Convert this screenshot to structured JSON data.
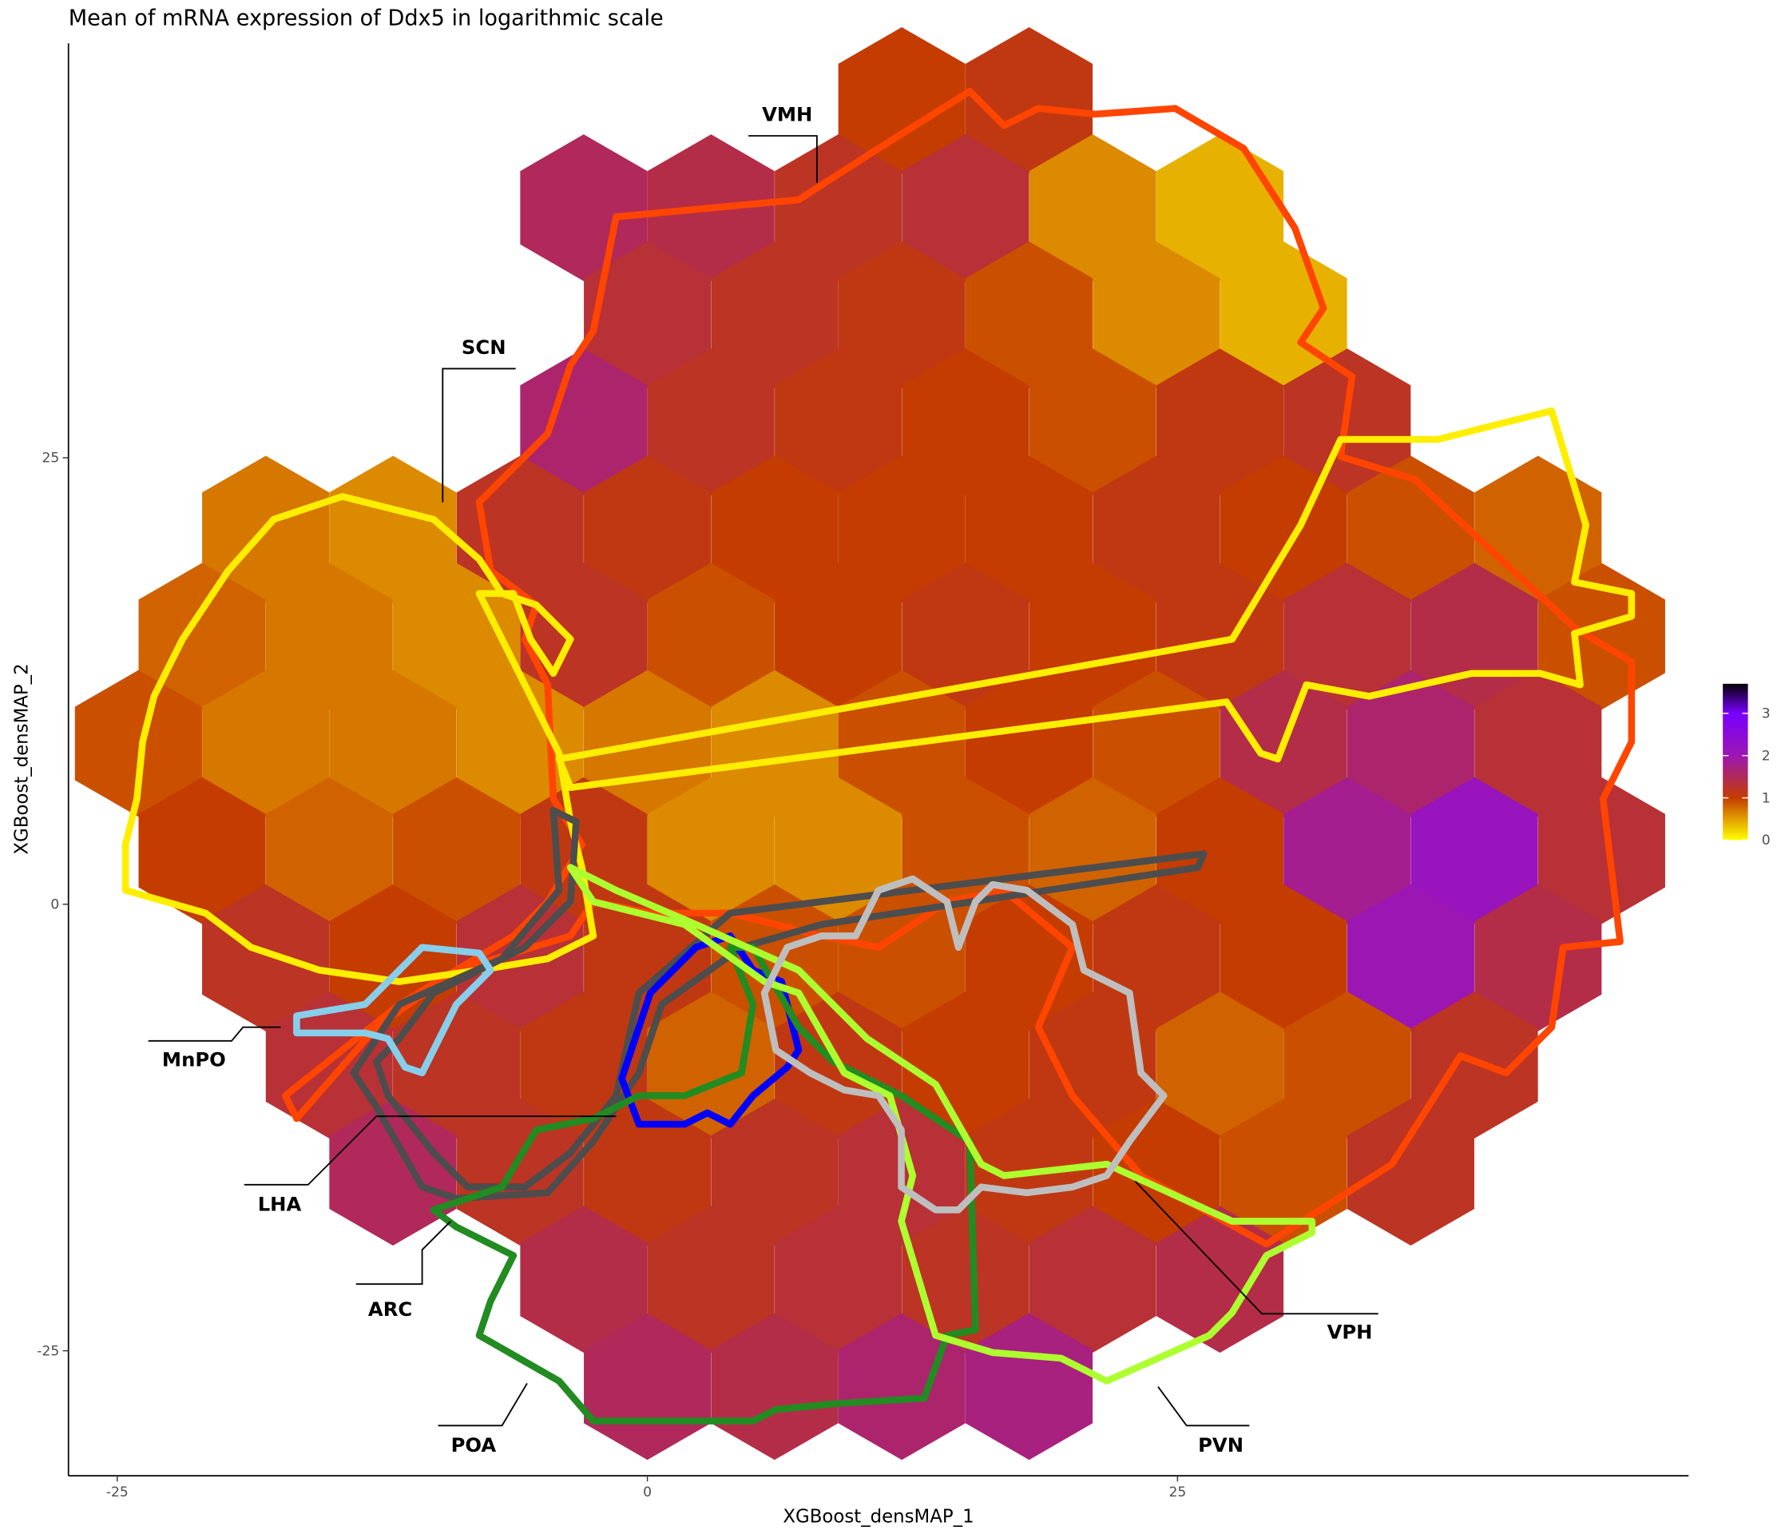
{
  "chart_data": {
    "type": "hexbin",
    "title": "Mean of mRNA expression of Ddx5 in logarithmic scale",
    "x_label": "XGBoost_densMAP_1",
    "y_label": "XGBoost_densMAP_2",
    "xlim": [
      -27.3,
      49.1
    ],
    "ylim": [
      -32,
      48.2
    ],
    "xticks": [
      -25,
      0,
      25
    ],
    "yticks": [
      -25,
      0,
      25
    ],
    "cells": {
      "x": [
        12,
        18,
        -3,
        3,
        9,
        15,
        21,
        27,
        0,
        6,
        12,
        18,
        24,
        30,
        -3,
        3,
        9,
        15,
        21,
        27,
        33,
        -18,
        -12,
        -6,
        0,
        6,
        12,
        18,
        24,
        30,
        36,
        42,
        -21,
        -15,
        -9,
        -3,
        3,
        9,
        15,
        21,
        27,
        33,
        39,
        45,
        -24,
        -18,
        -12,
        -6,
        0,
        6,
        12,
        18,
        24,
        30,
        36,
        42,
        -21,
        -15,
        -9,
        -3,
        3,
        9,
        15,
        21,
        27,
        33,
        39,
        45,
        -18,
        -12,
        -6,
        0,
        6,
        12,
        18,
        24,
        30,
        36,
        42,
        -15,
        -9,
        -3,
        3,
        9,
        15,
        21,
        27,
        33,
        39,
        -12,
        -6,
        0,
        6,
        12,
        18,
        24,
        30,
        36,
        -3,
        3,
        9,
        15,
        21,
        27,
        0,
        6,
        12,
        18
      ],
      "y": [
        45,
        45,
        39,
        39,
        39,
        39,
        39,
        39,
        33,
        33,
        33,
        33,
        33,
        33,
        27,
        27,
        27,
        27,
        27,
        27,
        27,
        21,
        21,
        21,
        21,
        21,
        21,
        21,
        21,
        21,
        21,
        21,
        15,
        15,
        15,
        15,
        15,
        15,
        15,
        15,
        15,
        15,
        15,
        15,
        9,
        9,
        9,
        9,
        9,
        9,
        9,
        9,
        9,
        9,
        9,
        9,
        3,
        3,
        3,
        3,
        3,
        3,
        3,
        3,
        3,
        3,
        3,
        3,
        -3,
        -3,
        -3,
        -3,
        -3,
        -3,
        -3,
        -3,
        -3,
        -3,
        -3,
        -9,
        -9,
        -9,
        -9,
        -9,
        -9,
        -9,
        -9,
        -9,
        -9,
        -15,
        -15,
        -15,
        -15,
        -15,
        -15,
        -15,
        -15,
        -15,
        -21,
        -21,
        -21,
        -21,
        -21,
        -21,
        -27,
        -27,
        -27,
        -27
      ],
      "values": [
        1.0,
        1.1,
        1.5,
        1.4,
        1.2,
        1.3,
        0.6,
        0.4,
        1.3,
        1.2,
        1.1,
        0.9,
        0.6,
        0.4,
        1.6,
        1.2,
        1.1,
        1.0,
        0.9,
        1.1,
        1.2,
        0.7,
        0.6,
        1.2,
        1.1,
        1.0,
        1.0,
        1.0,
        1.1,
        1.0,
        0.9,
        0.8,
        0.8,
        0.7,
        0.6,
        1.2,
        0.9,
        1.0,
        1.1,
        1.0,
        1.1,
        1.3,
        1.4,
        0.9,
        0.9,
        0.7,
        0.7,
        0.6,
        0.7,
        0.6,
        0.9,
        1.0,
        0.9,
        1.4,
        1.6,
        1.3,
        1.0,
        0.8,
        0.9,
        1.1,
        0.6,
        0.6,
        0.9,
        0.8,
        1.0,
        1.8,
        2.1,
        1.3,
        1.2,
        1.0,
        1.3,
        1.1,
        0.9,
        0.9,
        1.0,
        1.1,
        1.0,
        2.0,
        1.4,
        1.3,
        1.2,
        1.1,
        0.8,
        1.1,
        1.0,
        1.1,
        0.8,
        0.9,
        1.2,
        1.5,
        1.2,
        1.1,
        1.2,
        1.3,
        1.1,
        1.0,
        0.9,
        1.2,
        1.4,
        1.2,
        1.3,
        1.2,
        1.3,
        1.4,
        1.5,
        1.4,
        1.6,
        1.7
      ]
    },
    "colorbar": {
      "lim": [
        0,
        3.7
      ],
      "ticks": [
        0,
        1,
        2,
        3
      ],
      "stops": [
        {
          "value": 0,
          "color": "#ffff00"
        },
        {
          "value": 1,
          "color": "#c43c00"
        },
        {
          "value": 2,
          "color": "#9c16b4"
        },
        {
          "value": 3,
          "color": "#7800ff"
        },
        {
          "value": 3.7,
          "color": "#050005"
        }
      ]
    },
    "annotations": [
      "VMH",
      "SCN",
      "MnPO",
      "LHA",
      "ARC",
      "POA",
      "PVN",
      "VPH"
    ]
  }
}
